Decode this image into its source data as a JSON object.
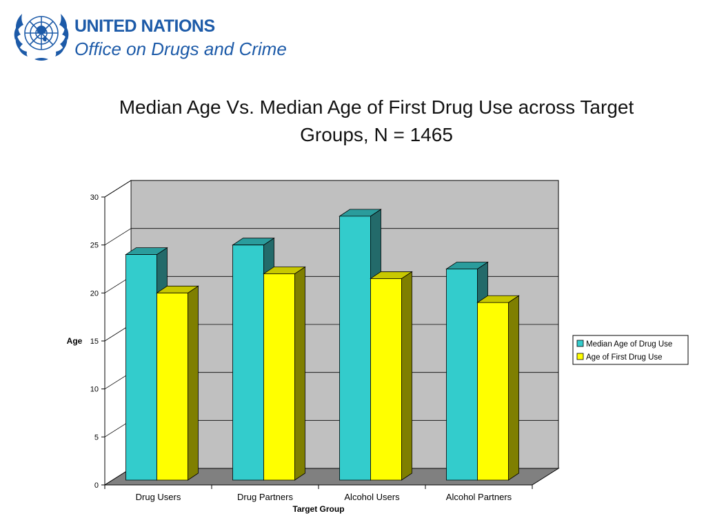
{
  "header": {
    "org_line1": "UNITED NATIONS",
    "org_line2": "Office on Drugs and Crime"
  },
  "colors": {
    "brand": "#1c5aa8",
    "series_front": [
      "#33cccc",
      "#ffff00"
    ],
    "series_side": [
      "#236a6a",
      "#7f7f00"
    ],
    "series_top": [
      "#2a9c9c",
      "#c8c800"
    ],
    "plot_wall": "#c0c0c0",
    "floor": "#808080"
  },
  "chart_data": {
    "type": "bar",
    "title": "Median Age Vs. Median Age of First Drug Use across Target Groups, N = 1465",
    "xlabel": "Target Group",
    "ylabel": "Age",
    "categories": [
      "Drug Users",
      "Drug Partners",
      "Alcohol Users",
      "Alcohol Partners"
    ],
    "series": [
      {
        "name": "Median Age of Drug Use",
        "values": [
          24,
          25,
          28,
          22.5
        ]
      },
      {
        "name": "Age of First Drug Use",
        "values": [
          20,
          22,
          21.5,
          19
        ]
      }
    ],
    "ylim": [
      0,
      30
    ],
    "yticks": [
      0,
      5,
      10,
      15,
      20,
      25,
      30
    ],
    "grid": true,
    "legend": "right",
    "style": "3d-clustered"
  }
}
